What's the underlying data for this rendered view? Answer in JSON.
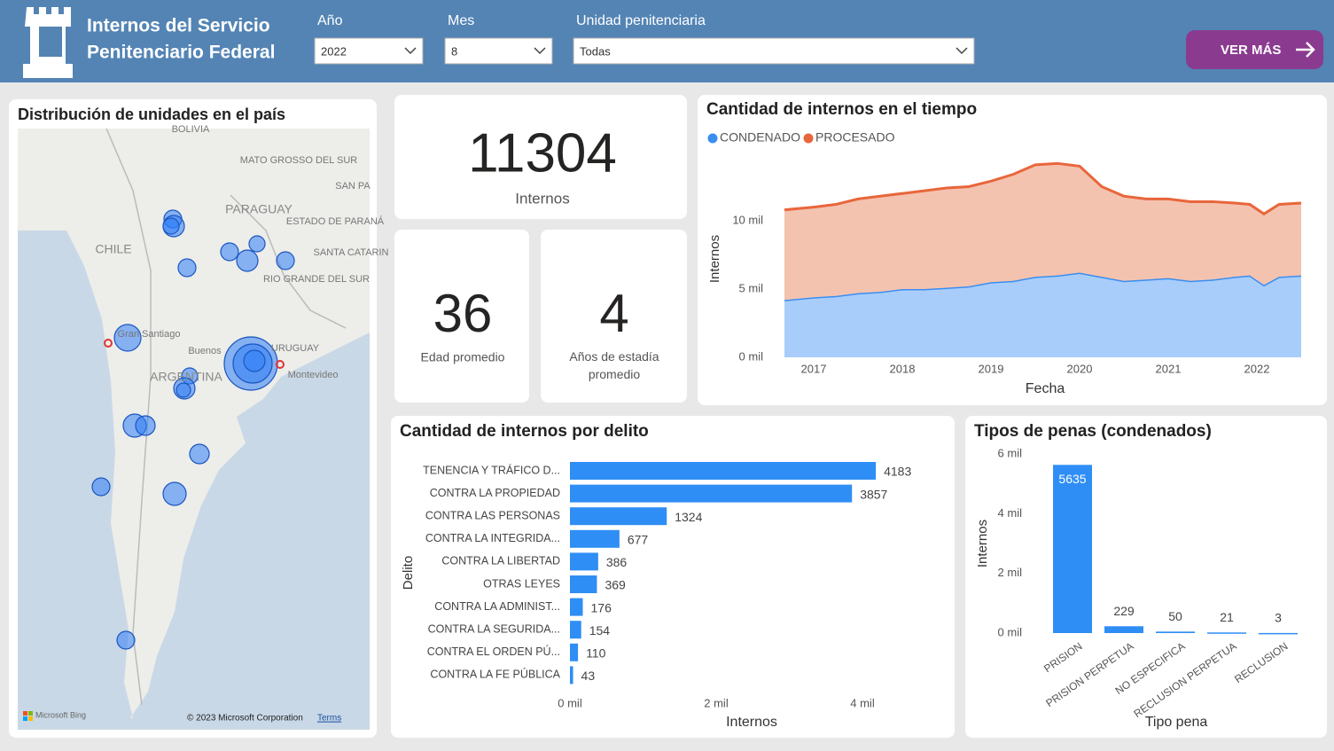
{
  "header": {
    "title_line1": "Internos del Servicio",
    "title_line2": "Penitenciario Federal",
    "filters": [
      {
        "label": "Año",
        "value": "2022"
      },
      {
        "label": "Mes",
        "value": "8"
      },
      {
        "label": "Unidad penitenciaria",
        "value": "Todas"
      }
    ],
    "button": "VER MÁS"
  },
  "map": {
    "title": "Distribución de unidades en el país",
    "labels": [
      "BOLIVIA",
      "MATO GROSSO DEL SUR",
      "SAN PA",
      "PARAGUAY",
      "ESTADO DE PARANÁ",
      "CHILE",
      "SANTA CATARIN",
      "RIO GRANDE DEL SUR",
      "Gran Santiago",
      "Buenos",
      "URUGUAY",
      "ARGENTINA",
      "Montevideo"
    ],
    "brand": "Microsoft Bing",
    "copyright": "© 2023 Microsoft Corporation",
    "terms": "Terms"
  },
  "cards": [
    {
      "value": "11304",
      "label": "Internos"
    },
    {
      "value": "36",
      "label": "Edad promedio"
    },
    {
      "value": "4",
      "label": "Años de estadía promedio"
    }
  ],
  "chart_data": [
    {
      "type": "area",
      "title": "Cantidad de internos en el tiempo",
      "x_label": "Fecha",
      "y_label": "Internos",
      "stacked": true,
      "x": [
        2016.67,
        2017.0,
        2017.25,
        2017.5,
        2017.75,
        2018.0,
        2018.25,
        2018.5,
        2018.75,
        2019.0,
        2019.25,
        2019.5,
        2019.75,
        2020.0,
        2020.25,
        2020.5,
        2020.75,
        2021.0,
        2021.25,
        2021.5,
        2021.75,
        2021.92,
        2022.08,
        2022.25,
        2022.5
      ],
      "series": [
        {
          "name": "CONDENADO",
          "color": "#3a8ef0",
          "values": [
            4200,
            4400,
            4500,
            4700,
            4800,
            5000,
            5000,
            5100,
            5200,
            5500,
            5600,
            5900,
            6000,
            6200,
            5900,
            5600,
            5700,
            5800,
            5600,
            5700,
            5900,
            6000,
            5300,
            5900,
            6000
          ]
        },
        {
          "name": "PROCESADO",
          "color": "#e8663b",
          "values": [
            6600,
            6600,
            6700,
            6900,
            7000,
            7000,
            7200,
            7300,
            7300,
            7400,
            7800,
            8200,
            8200,
            7800,
            6600,
            6200,
            5900,
            5800,
            5800,
            5700,
            5400,
            5200,
            5200,
            5300,
            5300
          ]
        }
      ],
      "xlim": [
        2016.66,
        2022.56
      ],
      "xticks": [
        2017,
        2018,
        2019,
        2020,
        2021,
        2022
      ],
      "ylim": [
        0,
        15000
      ],
      "yticks": [
        {
          "value": 0,
          "label": "0 mil"
        },
        {
          "value": 5000,
          "label": "5 mil"
        },
        {
          "value": 10000,
          "label": "10 mil"
        }
      ]
    },
    {
      "type": "hbar",
      "title": "Cantidad de internos por delito",
      "x_label": "Internos",
      "y_label": "Delito",
      "color": "#2f8ef5",
      "categories": [
        "TENENCIA Y TRÁFICO D...",
        "CONTRA LA PROPIEDAD",
        "CONTRA LAS PERSONAS",
        "CONTRA LA INTEGRIDA...",
        "CONTRA LA LIBERTAD",
        "OTRAS LEYES",
        "CONTRA LA ADMINIST...",
        "CONTRA LA SEGURIDA...",
        "CONTRA EL ORDEN PÚ...",
        "CONTRA LA FE PÚBLICA"
      ],
      "values": [
        4183,
        3857,
        1324,
        677,
        386,
        369,
        176,
        154,
        110,
        43
      ],
      "xlim": [
        0,
        5000
      ],
      "xticks": [
        {
          "value": 0,
          "label": "0 mil"
        },
        {
          "value": 2000,
          "label": "2 mil"
        },
        {
          "value": 4000,
          "label": "4 mil"
        }
      ]
    },
    {
      "type": "bar",
      "title": "Tipos de penas (condenados)",
      "x_label": "Tipo pena",
      "y_label": "Internos",
      "color": "#2f8ef5",
      "categories": [
        "PRISION",
        "PRISION PERPETUA",
        "NO ESPECIFICA",
        "RECLUSION PERPETUA",
        "RECLUSION"
      ],
      "values": [
        5635,
        229,
        50,
        21,
        3
      ],
      "ylim": [
        0,
        6000
      ],
      "yticks": [
        {
          "value": 0,
          "label": "0 mil"
        },
        {
          "value": 2000,
          "label": "2 mil"
        },
        {
          "value": 4000,
          "label": "4 mil"
        },
        {
          "value": 6000,
          "label": "6 mil"
        }
      ]
    }
  ]
}
